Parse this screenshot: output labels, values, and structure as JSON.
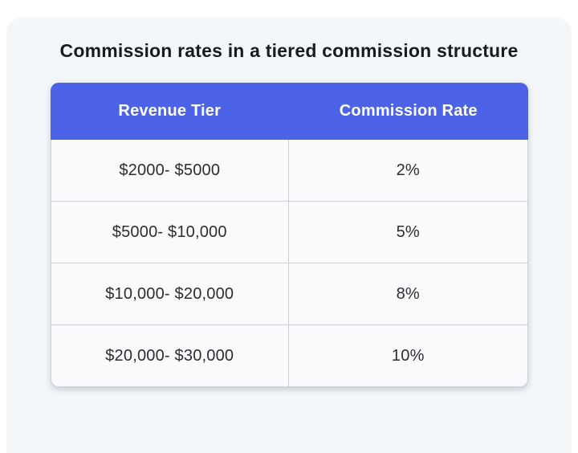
{
  "page": {
    "title": "Commission rates in a tiered commission structure"
  },
  "table": {
    "headers": [
      "Revenue Tier",
      "Commission Rate"
    ],
    "rows": [
      {
        "tier": "$2000- $5000",
        "rate": "2%"
      },
      {
        "tier": "$5000- $10,000",
        "rate": "5%"
      },
      {
        "tier": "$10,000- $20,000",
        "rate": "8%"
      },
      {
        "tier": "$20,000- $30,000",
        "rate": "10%"
      }
    ]
  },
  "colors": {
    "header_bg": "#4c63e7",
    "header_text": "#ffffff",
    "panel_bg": "#f4f7fa",
    "cell_bg": "#f8fafc",
    "border": "#ccd1d8",
    "title_text": "#1a1b1f",
    "cell_text": "#2b2d31",
    "page_bg": "#ffffff"
  },
  "chart_data": {
    "type": "table",
    "title": "Commission rates in a tiered commission structure",
    "columns": [
      "Revenue Tier",
      "Commission Rate"
    ],
    "rows": [
      [
        "$2000- $5000",
        "2%"
      ],
      [
        "$5000- $10,000",
        "5%"
      ],
      [
        "$10,000- $20,000",
        "8%"
      ],
      [
        "$20,000- $30,000",
        "10%"
      ]
    ],
    "tier_bounds_usd": [
      [
        2000,
        5000
      ],
      [
        5000,
        10000
      ],
      [
        10000,
        20000
      ],
      [
        20000,
        30000
      ]
    ],
    "rates_percent": [
      2,
      5,
      8,
      10
    ],
    "layout": {
      "header_position": "top",
      "grid": true,
      "columns_equal_width": true
    }
  }
}
